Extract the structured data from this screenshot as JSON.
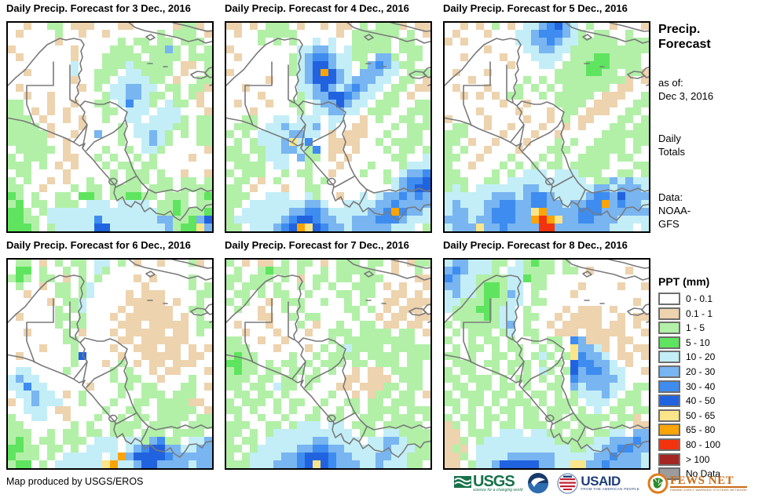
{
  "panels": [
    {
      "title": "Daily Precip. Forecast for 3 Dec., 2016",
      "grid": [
        "..t..gg.ttt...tt.....tggt.",
        ".t....g..t..t......g.ggg.t",
        "......t.......g.gg.gg.ggg.",
        "t.......t....ggg.gggbg.g.g",
        ".t......t...ggggg.gggg.ggg",
        "........c...gggcggggg.tt.g",
        "..t.....c..ggg.ccgggg.t..g",
        "........t..gg.ccccgg.t..gg",
        ".t.......t.g.ccbbcc.gg.ggt",
        "..t..t......gccbbcgg.g.gt.",
        "gg...t..t..gg.cBccg.cgg.t.",
        "gg.t.t.t....gg.ccc.ccc...t",
        "ggg.t..t.t..g..cc.ccccg.gg",
        "gggg.t...t....g.cccccgg.gg",
        "gggggt..t..b..g.ccbcg.g.gg",
        "ggggg..t......g..cbcg...gg",
        ".ggggg.t....g..g.ccg.....t",
        "g.ggg..tt..g.g..g.g....t..",
        "ggg.g.t.t...g.gg.gg.......",
        ".gg....t.....g.ggg.g..t..t",
        "g.g..t.t..g..g.ggg.gg.gg.g",
        "gg..t...g.gg.gggg.ggg.gggg",
        "Gg.g..gg.GGg.ggGGgg.ggg.gG",
        "gG.gg.ggg.ccc.cccc.ggGg.gg",
        "GGg.gccccccccccccccggGgggG",
        "GGgg.ccccccBcccccccbbggGbD",
        "GGGg.gcccccDDcccccccbgGGyb"
      ]
    },
    {
      "title": "Daily Precip. Forecast for 4 Dec., 2016",
      "grid": [
        "tt.t.ggg.t..t.tt.g.gggt.tt",
        ".t..ggggg.....t.gggggg.g.t",
        "....g.g.g..c.c..ggggg.gg..",
        "t........ccbbc.cggggg.ggg.",
        ".t......gcbBBbccgg.bbg.gg.",
        "........gcbDDbcc.gbBbcgg..",
        "t.......gcbDoDbc.bbbcc.ggg",
        ".....t...cbDDDbcbbbcc.gg.t",
        "..t......ccbDbcbBbcc.gg.tt",
        "....t....gcbbDDBbcc.gg.t..",
        ".t...t..gg.cbbDbcc.ggg..gg",
        "...t.....g.ccbbcc.ggg..ggg",
        "..gg..cc.ccc.cc..t.g..gg.g",
        ".ggg.ccbcccb.c..tt...g.ggg",
        "g.g.ccccbbcc.t.ttt..g..gg.",
        ".g.gcccbycB..tttt..g.gggg.",
        "gg.ggccbbcgB.tt.t...g.gg.g",
        "ggg.gccc.bgg.t.t.....gg..c",
        ".gggg.cc..g...t...g...gccc",
        "g.ggg..g.gg..t...g..g.cbbB",
        ".gg.t.g...g.g.......gcbBBD",
        "gg.t...t..gg.........cbBDD",
        "ggg..ccc..cg..t..c.cbbBbBb",
        "gg.cccccccbbc..ccccbbBbbbb",
        "g.ccccccbbBBbcccccbbBoBbbc",
        "gccccccbBDDBbbccbbbBBBbccc",
        "gg.cccbBDoyDBbbcbbbbbccc.g"
      ]
    },
    {
      "title": "Daily Precip. Forecast for 5 Dec., 2016",
      "grid": [
        "..t.t.g.t.ccbBDbc.g..t...t",
        ".t...t...ccbBBBbcg.gg..g..",
        "t.t......ccbbBbccggggg.ggg",
        ".....t....ccbbccgggggggggg",
        "..t....t...cccc.gggGGgggg.",
        "........t...cc.gggGGGgggg.",
        ".t...t........ggggGGgg.ggt",
        "...t......g.g.gggggggggt.t",
        ".t...t...g.g.g.gggggg.tt..",
        "..t.t.t.gg..g.ggggg.ttt..g",
        ".......t..t...gggg.ttt..gg",
        "....t....t...t.gg.ttt..gg.",
        "t....t....t..t.g.tt...gg.g",
        ".gg..t..t...t..t.t...gg.gg",
        "ggg....t...t..t.....gggggg",
        "gg.t..t...t...g.g..gggg.gg",
        "g.g..t...t...ggg..ggggg.g.",
        "gg..t...g...g.g..gggg.gg..",
        "g..t...g.g.g.gg.ggggg...gg",
        "gg....g.g.ccc.cccggg..gg.g",
        "ggg..gg.cccccccccc.ggbcbcc",
        "gcg.ccccccbbcccccccbbcbbbc",
        "ccccccbbbcbBBbccccbBBbDbbb",
        "cbcccbbBBbbBBbbcbbBBobBbbc",
        "cbbccbBBBbbyobbbbBBBbbbbbb",
        "bbbcbbBBBbboroybbBBbbbcccc",
        "cbbbybbBbbbbrrbbbbbbbccc.c"
      ]
    },
    {
      "title": "Daily Precip. Forecast for 6 Dec., 2016",
      "grid": [
        ".gg.t.g.gg.cc.g.t..t...gt.",
        ".GG.g..g.g.cg.............",
        "gGg.gg.t.g.g....t.t....g..",
        ".g..t.gg.gc......t.....g.g",
        "..t...gg.gc....t.ttt....gg",
        ".....t.ggc.....ttttt.t..g.",
        "......g.gc....t.ttttt..gg.",
        ".t....gg.g...t.tttttt.t.g.",
        "......g.gg....ttt.ttttt.gg",
        "..t....g.t...t.ttttt.tt.g.",
        ".......gg.....tt.tttttt...",
        "....t...g....t..ttt.tt.t.t",
        ".t......gD....t..ttttt.tt.",
        "........g...t.g.t.tt.ttt..",
        ".cc....g.....g.g..t.tt...t",
        "cbcc.........g.gg..t...g..",
        "ccBcc.....t...gg.gg...gg.t",
        ".ccbcc.t.g....g..ggg.ggg..",
        "t.cbccc..g...g..gg.ggggtt.",
        "..ccc.tt....g..gg..ggggg.t",
        "g..cc..t...g..g.gg.gggg.gg",
        "gg......g.g..gggg.gggg.ggg",
        "ggg..g.gg.gg.ggg.ggg.gggg.",
        "gGg.gg.ggg.ccc.ccgbBgg.ccb",
        "GGgg.gg.g.cccc.cbBDDbbccbb",
        "Gggg.g.ccccc.cobDDDDBbbbbb",
        "gGG.g.ccccccyoccbDDbbbbcbb"
      ]
    },
    {
      "title": "Daily Precip. Forecast for 7 Dec., 2016",
      "grid": [
        "g.t.tt.g.gg.t.ggg.gg.t.tgg",
        ".g..gGgg.g..g.ggggg..t..g.",
        "gg.ggg.g.t.gg.gg.ggg....tt",
        "g.ggg.g..g.g.g..ggg.t.t..t",
        ".gg.g.gg..g...gg.gg..tt.t.",
        "g.g..t.ggg..g..g.g..tt.ttt",
        ".g..t..g.g.....gg.g.t.ttt.",
        "....tt..g.gg....g..t.tt.tt",
        ".t...t...g.t..g..gg.tt.tt.",
        "..t...t...t..ggg.gggg.gg.t",
        "gg..t..t.....g.ggggggggg..",
        "ggg...t...t.g.gcgggg.ggggg",
        "gGgg....g..g.gggg.gggg.ggg",
        "GGgg.g.gg.g.ggg.gg.ggg.gg.",
        "gGgg.gg.gg.g.g..t.tt.gggg.",
        "ggg.gg.gg.gg...tt.ttt.ggg.",
        "gg.gg.cgg.g...tt.tttgg.gg.",
        ".gg.gg.g.....g..t.tgg.gg.t",
        "g.ggg.g.gg..g..gg.gg.ggg..",
        "gg.g..g.g..g..g.g.gggg.ggg",
        ".g..g..g..gg.gg..ggg.ggg.g",
        "ggg..gg.gccc.cc.ggg.ggggg.",
        "gg.g.gcccccccccc.gg.ccggzz",
        "g.gg.ccccccbbcccc.ccbbcggg",
        "gg.gcccccbbBBbbcccccbcccgg",
        "g.gccccbbBDDDBbbcccbbccggg",
        "gggcccbbbBDyDBbbbccbcccgg."
      ]
    },
    {
      "title": "Daily Precip. Forecast for 8 Dec., 2016",
      "grid": [
        "cbbcccgg.cgGgg.g..........",
        "bBbcccg.ccgggg.gg.t....t..",
        "BbccggggccGgg.............",
        "bbccgGGgcc.gg....t....t..t",
        "cbccgGGgbc.g....t.........",
        "ccgggGggcc.gg...........t.",
        "cgggGGgcc.g....t.ttt.t....",
        ".ggggGgcc.gg..t.tttt..t.tt",
        "g.gggggcb.g..t.ttttt.tt.t.",
        ".g.ggg.gc.gg..ttt.ttttt..t",
        "g..g.gg.g..g.gg.Bbttt.tt..",
        ".g.gg.g.gg..g.g.ybbct.t.tt",
        "gg.g..gg.g.gcg.gyBbbc.tt.t",
        ".ggg.gg.ggg.g.g.DBBbbc.t..",
        "g.gg..g.g.g.cg.gDbBBbcc..t",
        "gg.ggg.g.gg.g.g.Bbbbbbc...",
        ".gg.gg.gg.g..gg.bcbbbcc.gg",
        "g.ggg.gg.g.gg.g.gcccbc.gg.",
        "gg.gg.g.ggg.g.ggg.ccc.ggg.",
        ".g.g.g.gg.gg.ggg.g.c.gg.gg",
        "g.gg.gg.g.gg.gg.ggggg.ggt.",
        "tg.g.g.gg.ggg.gg.ggg.gg.tt",
        "tt.ggg.ccc.ccgg.gg.ggcc.bb",
        "ttg.gcccccccccgggggccbbbBb",
        "tgt.ccccccccccccggccbbBBbb",
        "ttg.ccccbbbbbbcccccbbBbbbc",
        "tt.gccbDDDDDbbccyybbBbbbbc"
      ]
    }
  ],
  "sidebar": {
    "title_line1": "Precip.",
    "title_line2": "Forecast",
    "as_of_label": "as of:",
    "as_of_date": "Dec 3, 2016",
    "totals_line1": "Daily",
    "totals_line2": "Totals",
    "data_label": "Data:",
    "data_line1": "NOAA-",
    "data_line2": "GFS"
  },
  "legend": {
    "title": "PPT (mm)",
    "items": [
      {
        "label": "0 - 0.1",
        "color": "#ffffff"
      },
      {
        "label": "0.1 - 1",
        "color": "#edd3ae"
      },
      {
        "label": "1 - 5",
        "color": "#b2f0a8"
      },
      {
        "label": "5 - 10",
        "color": "#5fe45f"
      },
      {
        "label": "10 - 20",
        "color": "#c3eef7"
      },
      {
        "label": "20 - 30",
        "color": "#78b5f1"
      },
      {
        "label": "30 - 40",
        "color": "#3e8cef"
      },
      {
        "label": "40 - 50",
        "color": "#2163df"
      },
      {
        "label": "50 - 65",
        "color": "#fbe58b"
      },
      {
        "label": "65 - 80",
        "color": "#fba405"
      },
      {
        "label": "80 - 100",
        "color": "#f2330e"
      },
      {
        "label": "> 100",
        "color": "#a42521"
      },
      {
        "label": "No Data",
        "color": "#9c9c9c"
      }
    ]
  },
  "footer": {
    "credit": "Map produced by USGS/EROS",
    "usgs_label": "USGS",
    "usgs_tagline": "science for a changing world",
    "usaid_label": "USAID",
    "usaid_tagline": "FROM THE AMERICAN PEOPLE",
    "fews_label": "FEWS NET",
    "fews_tagline": "FAMINE EARLY WARNING SYSTEMS NETWORK"
  },
  "palette": {
    ".": "#ffffff",
    "t": "#edd3ae",
    "g": "#b2f0a8",
    "G": "#5fe45f",
    "c": "#c3eef7",
    "b": "#78b5f1",
    "B": "#3e8cef",
    "D": "#2163df",
    "y": "#fbe58b",
    "o": "#fba405",
    "r": "#f2330e",
    "R": "#a42521",
    "z": "#b2f0a8",
    "N": "#9c9c9c"
  },
  "coast_color": "#7a7a7a"
}
